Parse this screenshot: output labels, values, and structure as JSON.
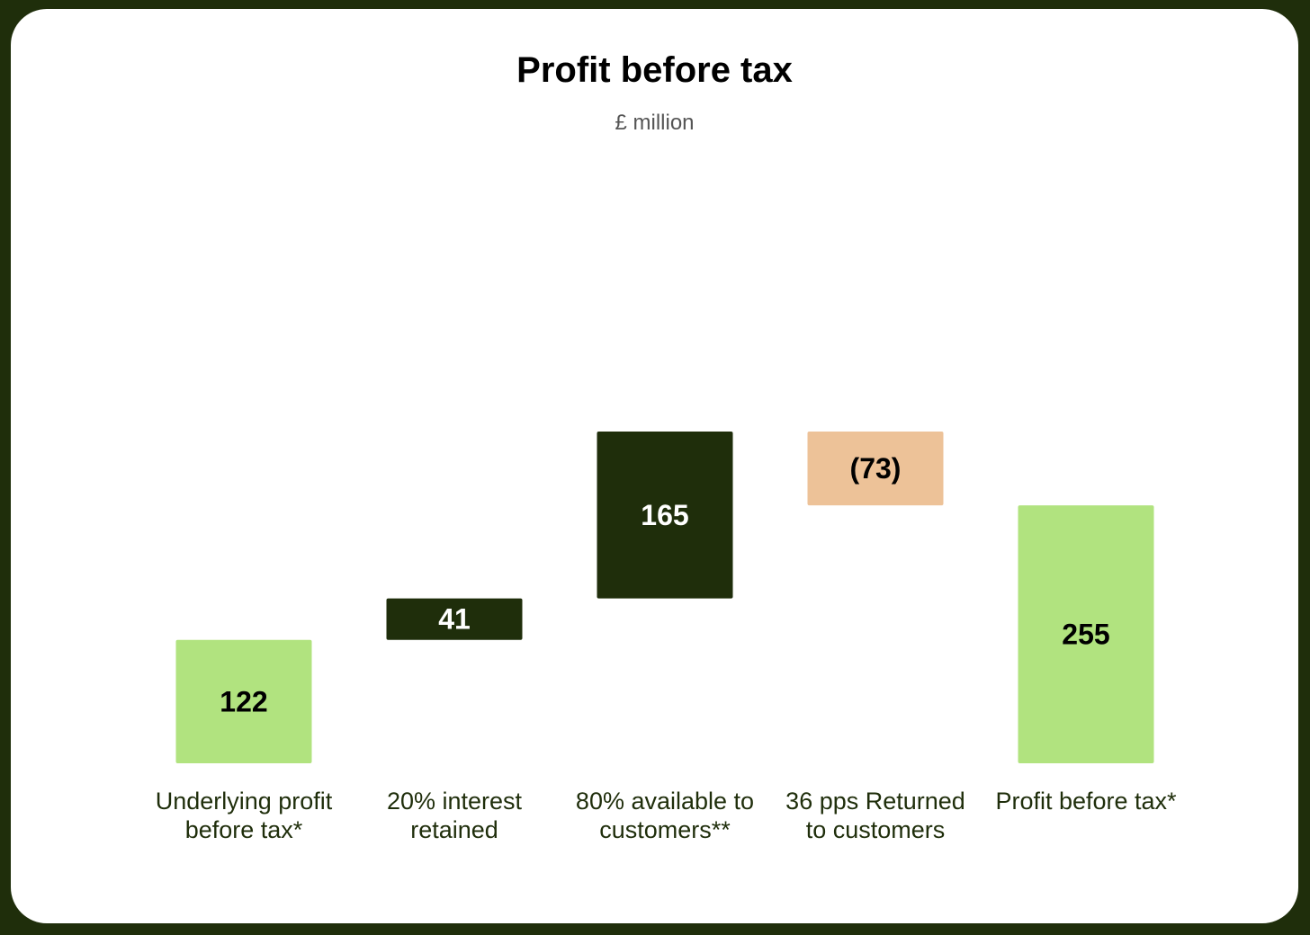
{
  "chart_data": {
    "type": "bar",
    "subtype": "waterfall",
    "title": "Profit before tax",
    "subtitle": "£ million",
    "categories": [
      [
        "Underlying profit",
        "before tax*"
      ],
      [
        "20% interest",
        "retained"
      ],
      [
        "80% available to",
        "customers**"
      ],
      [
        "36 pps Returned",
        "to customers"
      ],
      [
        "Profit before tax*"
      ]
    ],
    "values": [
      122,
      41,
      165,
      -73,
      255
    ],
    "value_labels": [
      "122",
      "41",
      "165",
      "(73)",
      "255"
    ],
    "measures": [
      "total",
      "relative",
      "relative",
      "relative",
      "total"
    ],
    "ylim": [
      0,
      330
    ],
    "grid": false,
    "colors": {
      "total": "#b1e37f",
      "increase": "#1f2e0b",
      "decrease": "#edc298",
      "label_on_light": "#000000",
      "label_on_dark": "#ffffff"
    }
  }
}
